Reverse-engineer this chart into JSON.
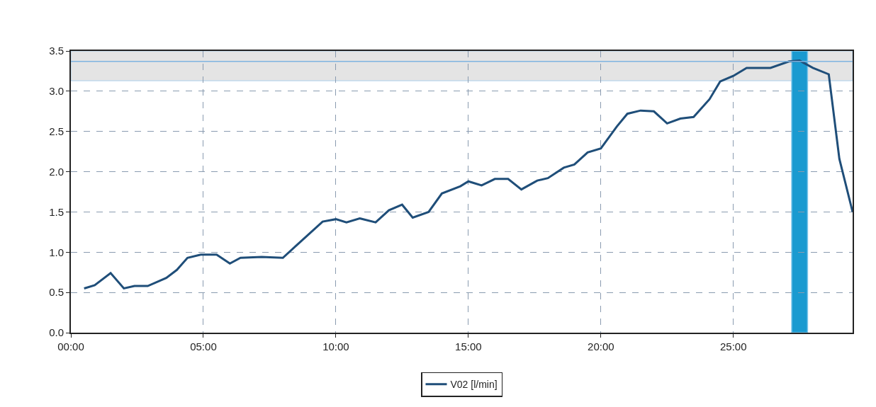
{
  "chart_data": {
    "type": "line",
    "x": [
      0.5,
      0.9,
      1.5,
      2.0,
      2.4,
      2.9,
      3.6,
      4.0,
      4.4,
      4.9,
      5.5,
      6.0,
      6.4,
      7.2,
      8.0,
      8.5,
      9.5,
      10.0,
      10.4,
      10.9,
      11.5,
      12.0,
      12.5,
      12.9,
      13.5,
      14.0,
      14.7,
      15.0,
      15.5,
      16.0,
      16.5,
      17.0,
      17.6,
      18.0,
      18.6,
      19.0,
      19.5,
      20.0,
      20.6,
      21.0,
      21.5,
      22.0,
      22.5,
      23.0,
      23.5,
      24.1,
      24.5,
      25.0,
      25.5,
      26.4,
      27.1,
      27.5,
      28.0,
      28.6,
      29.0,
      29.5
    ],
    "series": [
      {
        "name": "V02 [l/min]",
        "color": "#1f4e79",
        "values": [
          0.55,
          0.59,
          0.74,
          0.55,
          0.58,
          0.58,
          0.68,
          0.78,
          0.93,
          0.97,
          0.97,
          0.86,
          0.93,
          0.94,
          0.93,
          1.08,
          1.38,
          1.41,
          1.37,
          1.42,
          1.37,
          1.52,
          1.59,
          1.43,
          1.5,
          1.73,
          1.82,
          1.88,
          1.83,
          1.91,
          1.91,
          1.78,
          1.89,
          1.92,
          2.05,
          2.09,
          2.24,
          2.29,
          2.56,
          2.72,
          2.76,
          2.75,
          2.6,
          2.66,
          2.68,
          2.9,
          3.12,
          3.19,
          3.29,
          3.29,
          3.37,
          3.38,
          3.29,
          3.21,
          2.16,
          1.5
        ]
      }
    ],
    "xlim": [
      0,
      29.5
    ],
    "xticks": [
      {
        "value": 0,
        "label": "00:00"
      },
      {
        "value": 5,
        "label": "05:00"
      },
      {
        "value": 10,
        "label": "10:00"
      },
      {
        "value": 15,
        "label": "15:00"
      },
      {
        "value": 20,
        "label": "20:00"
      },
      {
        "value": 25,
        "label": "25:00"
      }
    ],
    "ylim": [
      0,
      3.5
    ],
    "yticks": [
      {
        "value": 0,
        "label": "0.0"
      },
      {
        "value": 0.5,
        "label": "0.5"
      },
      {
        "value": 1,
        "label": "1.0"
      },
      {
        "value": 1.5,
        "label": "1.5"
      },
      {
        "value": 2,
        "label": "2.0"
      },
      {
        "value": 2.5,
        "label": "2.5"
      },
      {
        "value": 3,
        "label": "3.0"
      },
      {
        "value": 3.5,
        "label": "3.5"
      }
    ],
    "bands": [
      {
        "axis": "y",
        "from": 3.13,
        "to": 3.5,
        "color": "#e4e4e4"
      },
      {
        "axis": "x",
        "from": 27.2,
        "to": 27.8,
        "color": "#1a9ad0"
      }
    ],
    "ref_lines": [
      {
        "axis": "y",
        "value": 3.37,
        "color": "#7fb3e0",
        "line_style": "solid"
      }
    ],
    "grid": true,
    "legend": "bottom",
    "line_style": "solid",
    "marker": "none"
  }
}
